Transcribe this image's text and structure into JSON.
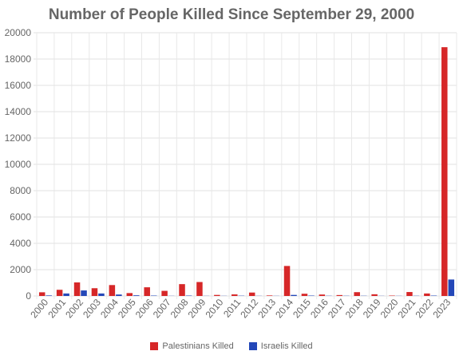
{
  "chart_data": {
    "type": "bar",
    "title": "Number of People Killed Since September 29, 2000",
    "xlabel": "",
    "ylabel": "",
    "ylim": [
      0,
      20000
    ],
    "yticks": [
      0,
      2000,
      4000,
      6000,
      8000,
      10000,
      12000,
      14000,
      16000,
      18000,
      20000
    ],
    "grid": true,
    "legend_position": "bottom",
    "categories": [
      "2000",
      "2001",
      "2002",
      "2003",
      "2004",
      "2005",
      "2006",
      "2007",
      "2008",
      "2009",
      "2010",
      "2011",
      "2012",
      "2013",
      "2014",
      "2015",
      "2016",
      "2017",
      "2018",
      "2019",
      "2020",
      "2021",
      "2022",
      "2023"
    ],
    "series": [
      {
        "name": "Palestinians Killed",
        "color": "#d62728",
        "values": [
          280,
          470,
          1030,
          590,
          830,
          220,
          660,
          390,
          900,
          1060,
          80,
          120,
          260,
          40,
          2280,
          170,
          110,
          70,
          290,
          130,
          30,
          300,
          190,
          18900
        ]
      },
      {
        "name": "Israelis Killed",
        "color": "#2347b8",
        "values": [
          40,
          190,
          420,
          190,
          110,
          50,
          30,
          10,
          30,
          10,
          10,
          20,
          10,
          10,
          80,
          30,
          15,
          15,
          15,
          10,
          10,
          15,
          30,
          1250
        ]
      }
    ]
  }
}
